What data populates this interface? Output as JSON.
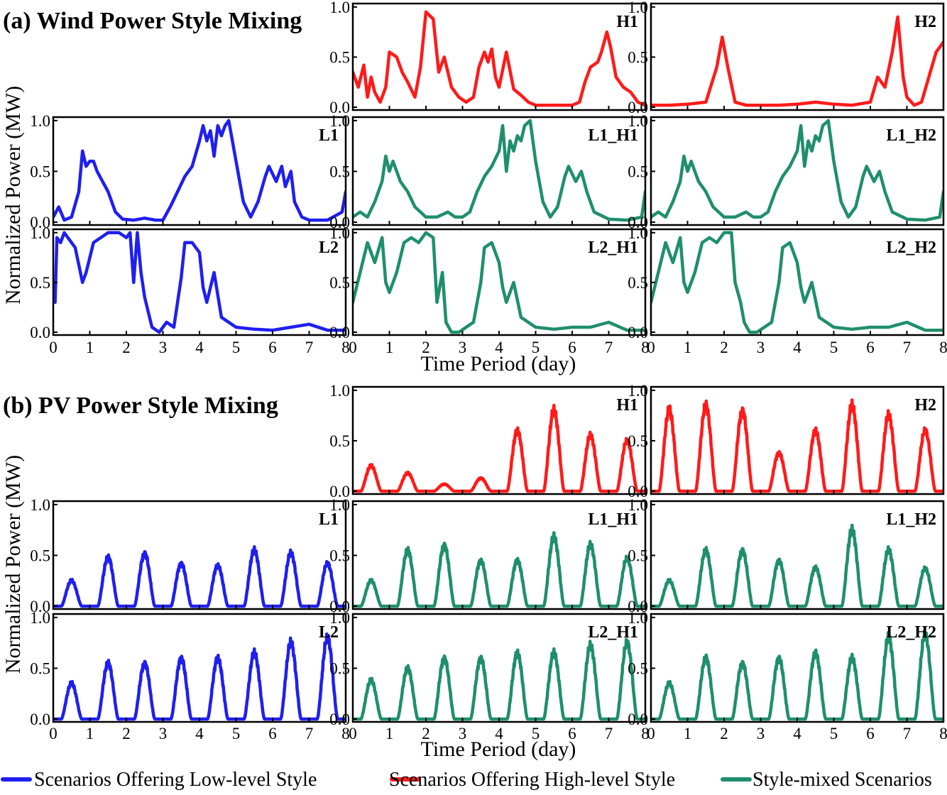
{
  "colors": {
    "low": "#1f1ff0",
    "high": "#ff1a1a",
    "mixed": "#1f8f6b"
  },
  "x_ticks": [
    "0",
    "1",
    "2",
    "3",
    "4",
    "5",
    "6",
    "7",
    "8"
  ],
  "y_ticks": [
    "0.0",
    "0.5",
    "1.0"
  ],
  "xlabel": "Time Period (day)",
  "ylabel": "Normalized Power (MW)",
  "legend": {
    "low": "Scenarios Offering Low-level Style",
    "high": "Scenarios Offering High-level Style",
    "mixed": "Style-mixed Scenarios"
  },
  "chart_data": [
    {
      "type": "line",
      "title": "(a) Wind Power Style Mixing",
      "xlabel": "Time Period (day)",
      "ylabel": "Normalized Power (MW)",
      "xlim": [
        0,
        8
      ],
      "ylim": [
        0,
        1
      ],
      "panels": [
        {
          "label": "H1",
          "style": "high",
          "x": [
            0,
            0.15,
            0.3,
            0.4,
            0.5,
            0.6,
            0.75,
            0.9,
            1.0,
            1.2,
            1.35,
            1.5,
            1.7,
            1.85,
            2.0,
            2.2,
            2.35,
            2.5,
            2.7,
            2.9,
            3.1,
            3.3,
            3.45,
            3.6,
            3.7,
            3.8,
            3.9,
            4.0,
            4.2,
            4.4,
            4.6,
            4.8,
            5.0,
            5.5,
            6.0,
            6.2,
            6.35,
            6.5,
            6.7,
            6.8,
            6.95,
            7.05,
            7.2,
            7.4,
            7.6,
            7.8,
            8.0
          ],
          "y": [
            0.35,
            0.2,
            0.42,
            0.1,
            0.3,
            0.15,
            0.05,
            0.2,
            0.55,
            0.5,
            0.35,
            0.25,
            0.1,
            0.4,
            0.95,
            0.88,
            0.35,
            0.5,
            0.2,
            0.1,
            0.05,
            0.1,
            0.4,
            0.55,
            0.45,
            0.58,
            0.3,
            0.2,
            0.55,
            0.18,
            0.12,
            0.05,
            0.02,
            0.02,
            0.02,
            0.05,
            0.25,
            0.4,
            0.45,
            0.55,
            0.75,
            0.6,
            0.3,
            0.2,
            0.15,
            0.05,
            0.02
          ]
        },
        {
          "label": "H2",
          "style": "high",
          "x": [
            0,
            0.5,
            1.0,
            1.5,
            1.8,
            1.95,
            2.1,
            2.3,
            2.6,
            3.0,
            3.5,
            4.0,
            4.5,
            5.0,
            5.5,
            6.0,
            6.2,
            6.4,
            6.6,
            6.75,
            6.9,
            7.0,
            7.2,
            7.4,
            7.6,
            7.8,
            8.0
          ],
          "y": [
            0.02,
            0.02,
            0.03,
            0.05,
            0.4,
            0.7,
            0.4,
            0.05,
            0.02,
            0.02,
            0.02,
            0.03,
            0.05,
            0.03,
            0.02,
            0.05,
            0.3,
            0.2,
            0.55,
            0.9,
            0.3,
            0.1,
            0.02,
            0.05,
            0.3,
            0.55,
            0.65
          ]
        },
        {
          "label": "L1",
          "style": "low",
          "x": [
            0,
            0.15,
            0.3,
            0.5,
            0.7,
            0.8,
            0.9,
            1.0,
            1.1,
            1.2,
            1.35,
            1.5,
            1.7,
            1.9,
            2.2,
            2.5,
            2.8,
            3.0,
            3.2,
            3.4,
            3.6,
            3.8,
            4.0,
            4.1,
            4.2,
            4.3,
            4.4,
            4.5,
            4.6,
            4.7,
            4.8,
            5.0,
            5.2,
            5.4,
            5.6,
            5.8,
            5.9,
            6.1,
            6.25,
            6.35,
            6.5,
            6.6,
            6.8,
            7.0,
            7.5,
            7.9,
            8.0
          ],
          "y": [
            0.05,
            0.15,
            0.02,
            0.05,
            0.3,
            0.7,
            0.55,
            0.6,
            0.6,
            0.5,
            0.4,
            0.3,
            0.1,
            0.03,
            0.02,
            0.04,
            0.02,
            0.02,
            0.15,
            0.3,
            0.45,
            0.55,
            0.8,
            0.95,
            0.8,
            0.9,
            0.65,
            0.95,
            0.85,
            0.95,
            1.0,
            0.6,
            0.2,
            0.05,
            0.2,
            0.45,
            0.55,
            0.4,
            0.55,
            0.35,
            0.5,
            0.2,
            0.05,
            0.02,
            0.02,
            0.1,
            0.3
          ]
        },
        {
          "label": "L1_H1",
          "style": "mixed",
          "x": [
            0,
            0.2,
            0.4,
            0.6,
            0.8,
            0.9,
            1.0,
            1.1,
            1.3,
            1.5,
            1.7,
            2.0,
            2.3,
            2.6,
            2.8,
            3.0,
            3.2,
            3.4,
            3.6,
            3.8,
            4.0,
            4.1,
            4.2,
            4.3,
            4.4,
            4.5,
            4.6,
            4.7,
            4.85,
            5.0,
            5.2,
            5.4,
            5.6,
            5.8,
            5.9,
            6.1,
            6.25,
            6.4,
            6.6,
            7.0,
            7.5,
            7.9,
            8.0
          ],
          "y": [
            0.05,
            0.1,
            0.05,
            0.2,
            0.4,
            0.65,
            0.5,
            0.6,
            0.4,
            0.3,
            0.15,
            0.05,
            0.05,
            0.1,
            0.05,
            0.05,
            0.1,
            0.3,
            0.45,
            0.55,
            0.7,
            0.95,
            0.5,
            0.8,
            0.7,
            0.85,
            0.8,
            0.95,
            1.0,
            0.6,
            0.2,
            0.05,
            0.15,
            0.45,
            0.55,
            0.4,
            0.5,
            0.3,
            0.1,
            0.03,
            0.02,
            0.05,
            0.3
          ]
        },
        {
          "label": "L1_H2",
          "style": "mixed",
          "x": [
            0,
            0.2,
            0.4,
            0.6,
            0.8,
            0.9,
            1.0,
            1.1,
            1.3,
            1.5,
            1.7,
            2.0,
            2.3,
            2.6,
            2.8,
            3.0,
            3.2,
            3.4,
            3.6,
            3.8,
            4.0,
            4.1,
            4.2,
            4.3,
            4.4,
            4.5,
            4.6,
            4.7,
            4.85,
            5.0,
            5.2,
            5.4,
            5.6,
            5.8,
            5.9,
            6.1,
            6.25,
            6.4,
            6.6,
            7.0,
            7.5,
            7.9,
            8.0
          ],
          "y": [
            0.05,
            0.1,
            0.05,
            0.2,
            0.4,
            0.65,
            0.5,
            0.6,
            0.4,
            0.3,
            0.15,
            0.05,
            0.05,
            0.1,
            0.05,
            0.05,
            0.1,
            0.3,
            0.45,
            0.55,
            0.7,
            0.95,
            0.55,
            0.8,
            0.7,
            0.85,
            0.8,
            0.95,
            1.0,
            0.6,
            0.2,
            0.05,
            0.15,
            0.45,
            0.55,
            0.4,
            0.5,
            0.3,
            0.1,
            0.03,
            0.02,
            0.05,
            0.3
          ]
        },
        {
          "label": "L2",
          "style": "low",
          "x": [
            0,
            0.05,
            0.1,
            0.2,
            0.3,
            0.4,
            0.6,
            0.8,
            0.9,
            1.0,
            1.1,
            1.3,
            1.5,
            1.8,
            2.0,
            2.1,
            2.2,
            2.3,
            2.4,
            2.5,
            2.7,
            2.9,
            3.1,
            3.3,
            3.5,
            3.6,
            3.8,
            4.0,
            4.1,
            4.2,
            4.4,
            4.6,
            5.0,
            5.5,
            6.0,
            6.5,
            7.0,
            7.5,
            8.0
          ],
          "y": [
            0.4,
            0.3,
            0.95,
            0.9,
            1.0,
            0.95,
            0.85,
            0.5,
            0.6,
            0.75,
            0.9,
            0.95,
            1.0,
            1.0,
            0.95,
            1.0,
            0.5,
            1.0,
            0.6,
            0.35,
            0.05,
            0.0,
            0.1,
            0.05,
            0.55,
            0.9,
            0.9,
            0.8,
            0.45,
            0.3,
            0.6,
            0.15,
            0.05,
            0.03,
            0.02,
            0.05,
            0.08,
            0.02,
            0.02
          ]
        },
        {
          "label": "L2_H1",
          "style": "mixed",
          "x": [
            0,
            0.2,
            0.4,
            0.6,
            0.8,
            0.9,
            1.0,
            1.2,
            1.4,
            1.6,
            1.8,
            2.0,
            2.2,
            2.3,
            2.45,
            2.55,
            2.7,
            2.9,
            3.1,
            3.3,
            3.5,
            3.6,
            3.8,
            4.0,
            4.1,
            4.2,
            4.4,
            4.6,
            5.0,
            5.5,
            6.0,
            6.5,
            7.0,
            7.5,
            8.0
          ],
          "y": [
            0.3,
            0.6,
            0.9,
            0.7,
            0.95,
            0.5,
            0.4,
            0.6,
            0.9,
            0.95,
            0.9,
            1.0,
            0.95,
            0.3,
            0.6,
            0.1,
            0.0,
            0.0,
            0.05,
            0.1,
            0.5,
            0.85,
            0.9,
            0.7,
            0.45,
            0.3,
            0.5,
            0.15,
            0.05,
            0.03,
            0.05,
            0.05,
            0.1,
            0.02,
            0.02
          ]
        },
        {
          "label": "L2_H2",
          "style": "mixed",
          "x": [
            0,
            0.2,
            0.4,
            0.6,
            0.8,
            0.9,
            1.0,
            1.2,
            1.4,
            1.6,
            1.8,
            2.0,
            2.2,
            2.3,
            2.45,
            2.55,
            2.7,
            2.9,
            3.1,
            3.3,
            3.5,
            3.6,
            3.8,
            4.0,
            4.1,
            4.2,
            4.4,
            4.6,
            5.0,
            5.5,
            6.0,
            6.5,
            7.0,
            7.5,
            8.0
          ],
          "y": [
            0.3,
            0.6,
            0.9,
            0.7,
            0.95,
            0.5,
            0.4,
            0.6,
            0.9,
            0.95,
            0.9,
            1.0,
            1.0,
            0.5,
            0.3,
            0.1,
            0.0,
            0.0,
            0.05,
            0.1,
            0.5,
            0.85,
            0.9,
            0.7,
            0.45,
            0.3,
            0.5,
            0.15,
            0.05,
            0.03,
            0.05,
            0.05,
            0.1,
            0.02,
            0.02
          ]
        }
      ]
    },
    {
      "type": "line",
      "title": "(b) PV Power Style Mixing",
      "xlabel": "Time Period (day)",
      "ylabel": "Normalized Power (MW)",
      "xlim": [
        0,
        8
      ],
      "ylim": [
        0,
        1
      ],
      "panels": [
        {
          "label": "H1",
          "style": "high",
          "peaks": [
            0.25,
            0.18,
            0.07,
            0.13,
            0.6,
            0.8,
            0.55,
            0.5
          ]
        },
        {
          "label": "H2",
          "style": "high",
          "peaks": [
            0.8,
            0.85,
            0.8,
            0.38,
            0.6,
            0.85,
            0.75,
            0.6
          ]
        },
        {
          "label": "L1",
          "style": "low",
          "peaks": [
            0.25,
            0.48,
            0.52,
            0.42,
            0.4,
            0.55,
            0.52,
            0.42
          ]
        },
        {
          "label": "L1_H1",
          "style": "mixed",
          "peaks": [
            0.25,
            0.55,
            0.6,
            0.45,
            0.45,
            0.68,
            0.6,
            0.47
          ]
        },
        {
          "label": "L1_H2",
          "style": "mixed",
          "peaks": [
            0.25,
            0.55,
            0.55,
            0.45,
            0.38,
            0.75,
            0.55,
            0.37
          ]
        },
        {
          "label": "L2",
          "style": "low",
          "peaks": [
            0.35,
            0.55,
            0.55,
            0.6,
            0.6,
            0.65,
            0.75,
            0.8
          ]
        },
        {
          "label": "L2_H1",
          "style": "mixed",
          "peaks": [
            0.38,
            0.5,
            0.6,
            0.6,
            0.65,
            0.65,
            0.72,
            0.75
          ]
        },
        {
          "label": "L2_H2",
          "style": "mixed",
          "peaks": [
            0.35,
            0.6,
            0.55,
            0.6,
            0.65,
            0.6,
            0.8,
            0.83
          ]
        }
      ]
    }
  ]
}
